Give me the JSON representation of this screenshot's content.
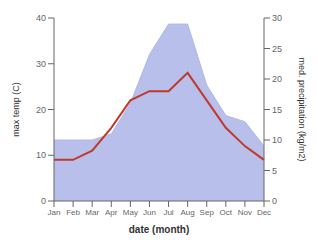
{
  "chart_data": {
    "type": "line",
    "xlabel": "date (month)",
    "ylabel": "max temp (C)",
    "y2label": "med. precipitation (kg/m2)",
    "categories": [
      "Jan",
      "Feb",
      "Mar",
      "Apr",
      "May",
      "Jun",
      "Jul",
      "Aug",
      "Sep",
      "Oct",
      "Nov",
      "Dec"
    ],
    "series": [
      {
        "type": "area",
        "axis": "y2",
        "color": "#b0b8e8",
        "values": [
          10,
          10,
          10,
          11,
          16,
          24,
          29,
          29,
          19,
          14,
          13,
          9
        ]
      },
      {
        "type": "line",
        "color": "#c0392b",
        "values": [
          9,
          9,
          11,
          16,
          22,
          24,
          24,
          28,
          22,
          16,
          12,
          9
        ]
      }
    ],
    "ylim": [
      0,
      40
    ],
    "yticks": [
      0,
      10,
      20,
      30,
      40
    ],
    "y2lim": [
      0,
      30
    ],
    "y2ticks": [
      0,
      5,
      10,
      15,
      20,
      25,
      30
    ],
    "grid": false
  }
}
